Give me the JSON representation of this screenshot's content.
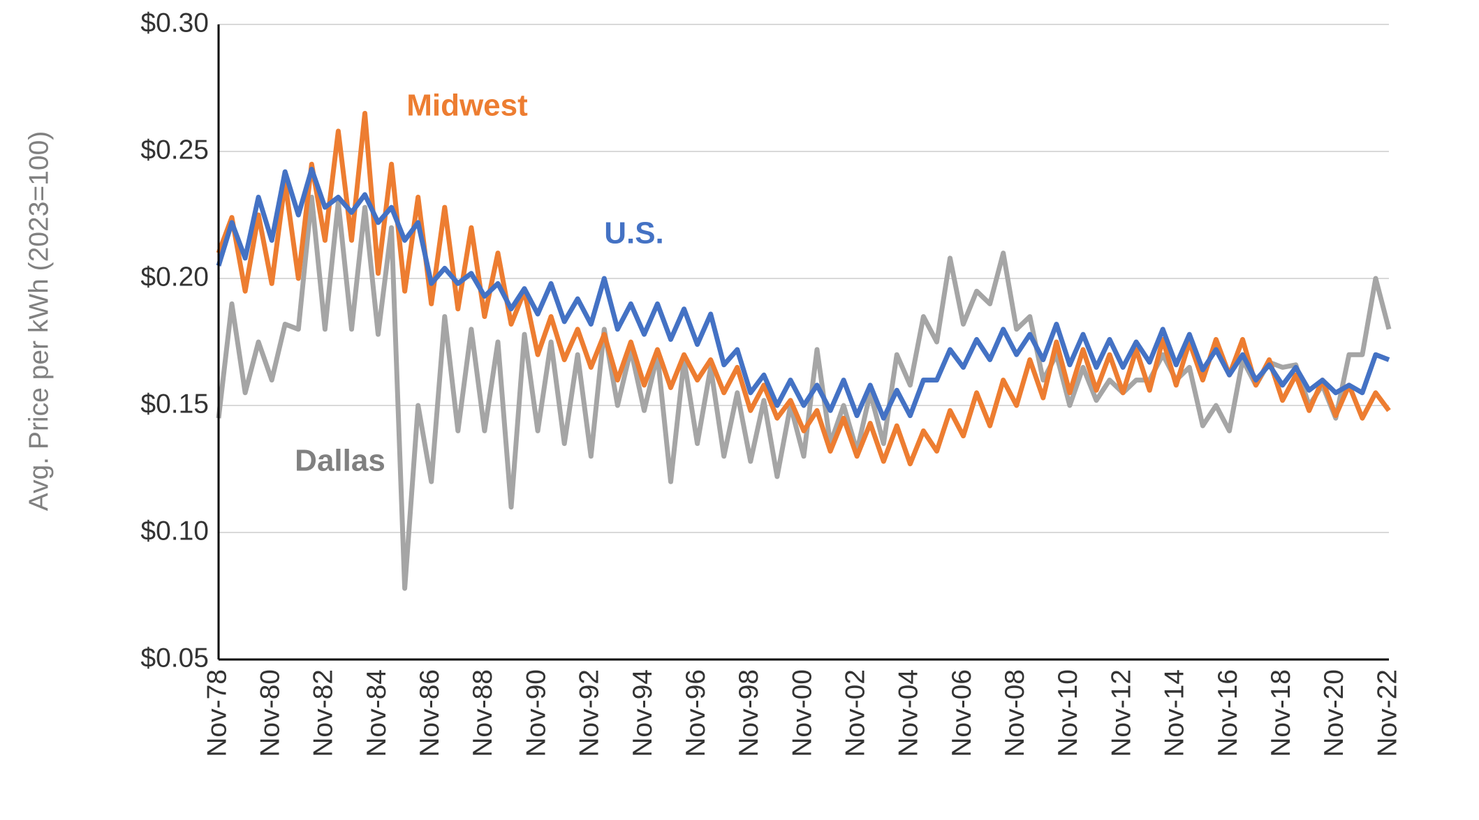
{
  "chart_data": {
    "type": "line",
    "y_label": "Avg. Price per kWh (2023=100)",
    "categories": [
      "Nov-78",
      null,
      null,
      null,
      "Nov-80",
      null,
      null,
      null,
      "Nov-82",
      null,
      null,
      null,
      "Nov-84",
      null,
      null,
      null,
      "Nov-86",
      null,
      null,
      null,
      "Nov-88",
      null,
      null,
      null,
      "Nov-90",
      null,
      null,
      null,
      "Nov-92",
      null,
      null,
      null,
      "Nov-94",
      null,
      null,
      null,
      "Nov-96",
      null,
      null,
      null,
      "Nov-98",
      null,
      null,
      null,
      "Nov-00",
      null,
      null,
      null,
      "Nov-02",
      null,
      null,
      null,
      "Nov-04",
      null,
      null,
      null,
      "Nov-06",
      null,
      null,
      null,
      "Nov-08",
      null,
      null,
      null,
      "Nov-10",
      null,
      null,
      null,
      "Nov-12",
      null,
      null,
      null,
      "Nov-14",
      null,
      null,
      null,
      "Nov-16",
      null,
      null,
      null,
      "Nov-18",
      null,
      null,
      null,
      "Nov-20",
      null,
      null,
      null,
      "Nov-22"
    ],
    "series": [
      {
        "name": "U.S.",
        "color": "#4472c4",
        "values": [
          0.205,
          0.222,
          0.208,
          0.232,
          0.215,
          0.242,
          0.225,
          0.243,
          0.228,
          0.232,
          0.226,
          0.233,
          0.222,
          0.228,
          0.215,
          0.222,
          0.198,
          0.204,
          0.198,
          0.202,
          0.193,
          0.198,
          0.188,
          0.196,
          0.186,
          0.198,
          0.183,
          0.192,
          0.182,
          0.2,
          0.18,
          0.19,
          0.178,
          0.19,
          0.176,
          0.188,
          0.174,
          0.186,
          0.166,
          0.172,
          0.155,
          0.162,
          0.15,
          0.16,
          0.15,
          0.158,
          0.148,
          0.16,
          0.146,
          0.158,
          0.145,
          0.156,
          0.146,
          0.16,
          0.16,
          0.172,
          0.165,
          0.176,
          0.168,
          0.18,
          0.17,
          0.178,
          0.168,
          0.182,
          0.166,
          0.178,
          0.165,
          0.176,
          0.165,
          0.175,
          0.167,
          0.18,
          0.166,
          0.178,
          0.164,
          0.172,
          0.162,
          0.17,
          0.16,
          0.166,
          0.158,
          0.165,
          0.156,
          0.16,
          0.155,
          0.158,
          0.155,
          0.17,
          0.168
        ]
      },
      {
        "name": "Midwest",
        "color": "#ed7d31",
        "values": [
          0.21,
          0.224,
          0.195,
          0.225,
          0.198,
          0.238,
          0.2,
          0.245,
          0.215,
          0.258,
          0.215,
          0.265,
          0.202,
          0.245,
          0.195,
          0.232,
          0.19,
          0.228,
          0.188,
          0.22,
          0.185,
          0.21,
          0.182,
          0.195,
          0.17,
          0.185,
          0.168,
          0.18,
          0.165,
          0.178,
          0.16,
          0.175,
          0.158,
          0.172,
          0.157,
          0.17,
          0.16,
          0.168,
          0.155,
          0.165,
          0.148,
          0.158,
          0.145,
          0.152,
          0.14,
          0.148,
          0.132,
          0.145,
          0.13,
          0.143,
          0.128,
          0.142,
          0.127,
          0.14,
          0.132,
          0.148,
          0.138,
          0.155,
          0.142,
          0.16,
          0.15,
          0.168,
          0.153,
          0.175,
          0.155,
          0.172,
          0.156,
          0.17,
          0.155,
          0.172,
          0.156,
          0.176,
          0.158,
          0.175,
          0.16,
          0.176,
          0.162,
          0.176,
          0.158,
          0.168,
          0.152,
          0.162,
          0.148,
          0.16,
          0.146,
          0.158,
          0.145,
          0.155,
          0.148
        ]
      },
      {
        "name": "Dallas",
        "color": "#a5a5a5",
        "values": [
          0.145,
          0.19,
          0.155,
          0.175,
          0.16,
          0.182,
          0.18,
          0.232,
          0.18,
          0.23,
          0.18,
          0.228,
          0.178,
          0.22,
          0.078,
          0.15,
          0.12,
          0.185,
          0.14,
          0.18,
          0.14,
          0.175,
          0.11,
          0.178,
          0.14,
          0.175,
          0.135,
          0.17,
          0.13,
          0.18,
          0.15,
          0.172,
          0.148,
          0.17,
          0.12,
          0.168,
          0.135,
          0.165,
          0.13,
          0.155,
          0.128,
          0.152,
          0.122,
          0.15,
          0.13,
          0.172,
          0.135,
          0.15,
          0.132,
          0.155,
          0.135,
          0.17,
          0.158,
          0.185,
          0.175,
          0.208,
          0.182,
          0.195,
          0.19,
          0.21,
          0.18,
          0.185,
          0.16,
          0.17,
          0.15,
          0.165,
          0.152,
          0.16,
          0.155,
          0.16,
          0.16,
          0.17,
          0.16,
          0.165,
          0.142,
          0.15,
          0.14,
          0.168,
          0.158,
          0.167,
          0.165,
          0.166,
          0.15,
          0.158,
          0.145,
          0.17,
          0.17,
          0.2,
          0.18
        ]
      }
    ],
    "ylim": [
      0.05,
      0.3
    ],
    "yticks": [
      {
        "value": 0.05,
        "label": "$0.05"
      },
      {
        "value": 0.1,
        "label": "$0.10"
      },
      {
        "value": 0.15,
        "label": "$0.15"
      },
      {
        "value": 0.2,
        "label": "$0.20"
      },
      {
        "value": 0.25,
        "label": "$0.25"
      },
      {
        "value": 0.3,
        "label": "$0.30"
      }
    ],
    "grid": true
  }
}
